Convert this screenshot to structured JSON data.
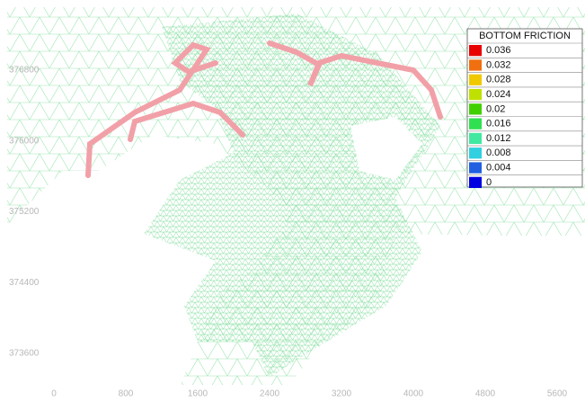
{
  "map": {
    "x_ticks": [
      0,
      800,
      1600,
      2400,
      3200,
      4000,
      4800,
      5600
    ],
    "y_ticks": [
      373600,
      374400,
      375200,
      376000,
      376800
    ],
    "legend": {
      "title": "BOTTOM FRICTION",
      "entries": [
        {
          "label": 0.036,
          "color": "#e80000"
        },
        {
          "label": 0.032,
          "color": "#f07010"
        },
        {
          "label": 0.028,
          "color": "#f0c800"
        },
        {
          "label": 0.024,
          "color": "#c0e000"
        },
        {
          "label": 0.02,
          "color": "#40d000"
        },
        {
          "label": 0.016,
          "color": "#30e050"
        },
        {
          "label": 0.012,
          "color": "#40e8a0"
        },
        {
          "label": 0.008,
          "color": "#30d0e0"
        },
        {
          "label": 0.004,
          "color": "#2060e0"
        },
        {
          "label": 0,
          "color": "#0000e0"
        }
      ]
    }
  }
}
